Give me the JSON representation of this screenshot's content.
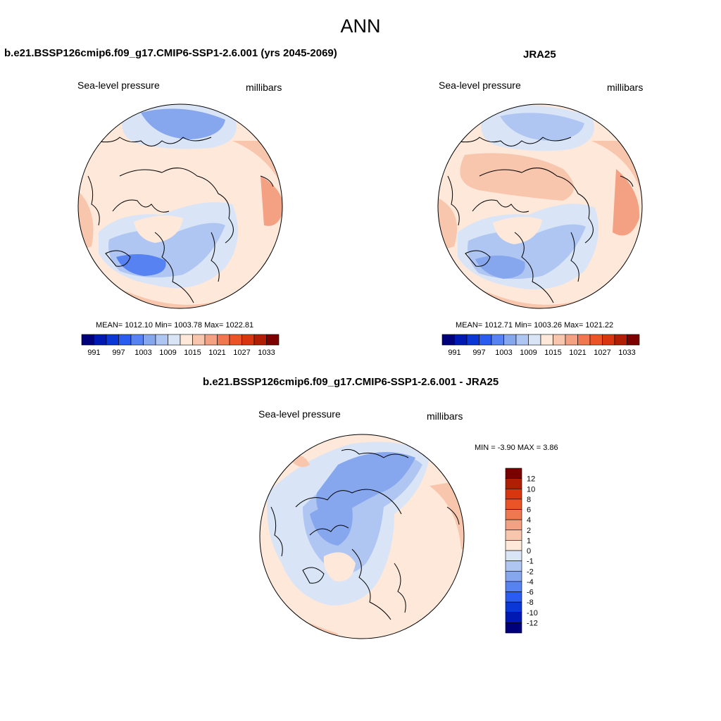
{
  "page_title": "ANN",
  "panels": [
    {
      "title": "b.e21.BSSP126cmip6.f09_g17.CMIP6-SSP1-2.6.001 (yrs 2045-2069)",
      "variable": "Sea-level pressure",
      "units": "millibars",
      "stats_label": "MEAN= 1012.10  Min= 1003.78  Max= 1022.81",
      "mean": 1012.1,
      "min": 1003.78,
      "max": 1022.81
    },
    {
      "title": "JRA25",
      "variable": "Sea-level pressure",
      "units": "millibars",
      "stats_label": "MEAN= 1012.71  Min= 1003.26  Max= 1021.22",
      "mean": 1012.71,
      "min": 1003.26,
      "max": 1021.22
    },
    {
      "title": "b.e21.BSSP126cmip6.f09_g17.CMIP6-SSP1-2.6.001 - JRA25",
      "variable": "Sea-level pressure",
      "units": "millibars",
      "stats_label": "MIN =  -3.90 MAX =   3.86",
      "min": -3.9,
      "max": 3.86
    }
  ],
  "slp_colorbar": {
    "tick_labels": [
      "991",
      "997",
      "1003",
      "1009",
      "1015",
      "1021",
      "1027",
      "1033"
    ],
    "colors": [
      "#00007a",
      "#0019b3",
      "#0a37d6",
      "#2b5cf0",
      "#5682f2",
      "#86a7ee",
      "#b0c6f2",
      "#d9e5f7",
      "#fde8da",
      "#f8c6ac",
      "#f4a083",
      "#f07850",
      "#eb5426",
      "#d9360f",
      "#b01e06",
      "#7d0000"
    ]
  },
  "diff_colorbar": {
    "tick_labels": [
      "12",
      "10",
      "8",
      "6",
      "4",
      "2",
      "1",
      "0",
      "-1",
      "-2",
      "-4",
      "-6",
      "-8",
      "-10",
      "-12"
    ],
    "colors": [
      "#7d0000",
      "#b01e06",
      "#d9360f",
      "#eb5426",
      "#f07850",
      "#f4a083",
      "#f8c6ac",
      "#fde8da",
      "#d9e5f7",
      "#b0c6f2",
      "#86a7ee",
      "#5682f2",
      "#2b5cf0",
      "#0a37d6",
      "#0019b3",
      "#00007a"
    ]
  },
  "colors": {
    "ocean_high": "#fde8da",
    "low_light": "#d9e5f7",
    "low_mid": "#b0c6f2",
    "low_deep": "#86a7ee",
    "high_mid": "#f8c6ac",
    "high_deep": "#f4a083",
    "high_strong": "#f07850"
  }
}
